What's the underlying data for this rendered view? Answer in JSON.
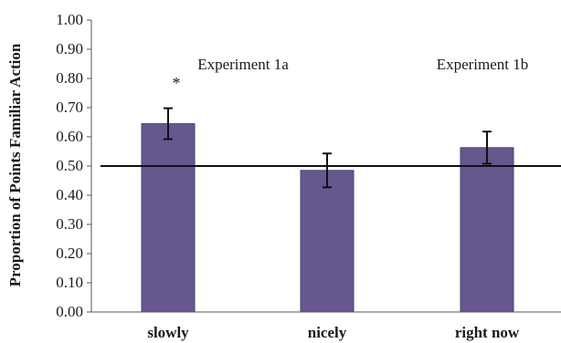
{
  "chart_data": {
    "type": "bar",
    "categories": [
      "slowly",
      "nicely",
      "right now"
    ],
    "values": [
      0.645,
      0.485,
      0.563
    ],
    "error": [
      0.053,
      0.058,
      0.055
    ],
    "ylabel": "Proportion of Points Familiar Action",
    "ylim": [
      0,
      1
    ],
    "yticks": [
      "0.00",
      "0.10",
      "0.20",
      "0.30",
      "0.40",
      "0.50",
      "0.60",
      "0.70",
      "0.80",
      "0.90",
      "1.00"
    ],
    "reference_line": 0.5,
    "annotations": {
      "experiment_1a": "Experiment 1a",
      "experiment_1b": "Experiment 1b",
      "significance": "*"
    },
    "bar_color": "#66588f",
    "grid": false
  }
}
